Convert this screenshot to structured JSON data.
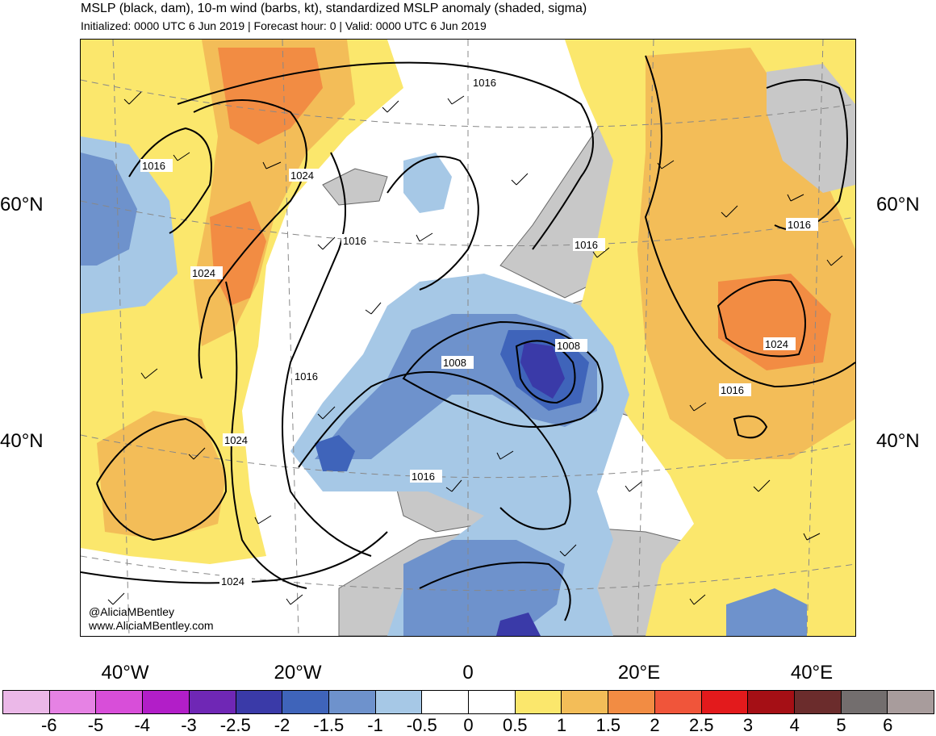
{
  "header": {
    "title": "MSLP (black, dam), 10-m wind (barbs, kt), standardized MSLP anomaly (shaded, sigma)",
    "subtitle": "Initialized: 0000 UTC 6 Jun 2019 | Forecast hour: 0 | Valid: 0000 UTC 6 Jun 2019"
  },
  "axes": {
    "lat_left": [
      "60°N",
      "40°N"
    ],
    "lat_right": [
      "60°N",
      "40°N"
    ],
    "lon": [
      "40°W",
      "20°W",
      "0",
      "20°E",
      "40°E"
    ]
  },
  "contour_labels": [
    "1016",
    "1016",
    "1024",
    "1016",
    "1024",
    "1016",
    "1008",
    "1008",
    "1016",
    "1016",
    "1024",
    "1024",
    "1016",
    "1016",
    "1024"
  ],
  "credit": {
    "handle": "@AliciaMBentley",
    "url": "www.AliciaMBentley.com"
  },
  "colorbar": {
    "labels": [
      "-6",
      "-5",
      "-4",
      "-3",
      "-2.5",
      "-2",
      "-1.5",
      "-1",
      "-0.5",
      "0",
      "0.5",
      "1",
      "1.5",
      "2",
      "2.5",
      "3",
      "4",
      "5",
      "6"
    ],
    "colors": [
      "#ebb8e8",
      "#e682e4",
      "#d84ed9",
      "#b21ec8",
      "#6f27b5",
      "#3a3aa8",
      "#3f64ba",
      "#6e92cc",
      "#a6c8e6",
      "#ffffff",
      "#ffffff",
      "#fbe76c",
      "#f3bd58",
      "#f28c43",
      "#f0553a",
      "#e31a1c",
      "#a50f15",
      "#6b2c2c",
      "#736e6e",
      "#a89c9c"
    ]
  },
  "colors": {
    "land": "#c8c8c8",
    "coast": "#555555",
    "contour": "#000000"
  }
}
